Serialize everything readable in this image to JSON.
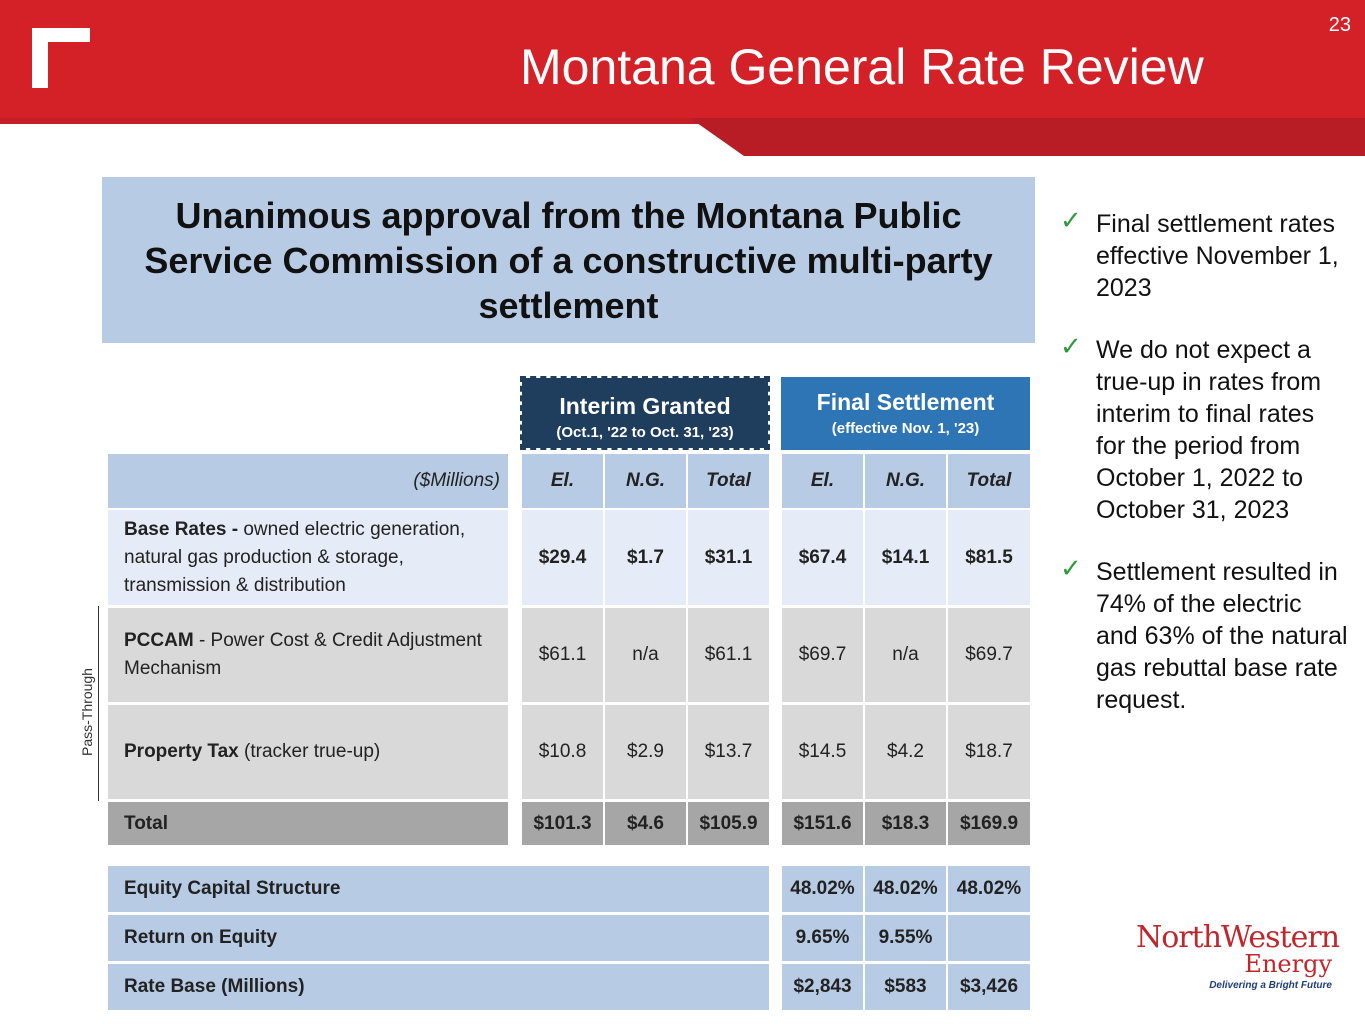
{
  "header": {
    "title": "Montana General Rate Review",
    "slide_number": "23",
    "accent_color": "#d42027"
  },
  "banner": {
    "text": "Unanimous approval from the Montana Public Service Commission of a constructive multi-party settlement"
  },
  "groups": {
    "interim": {
      "title": "Interim Granted",
      "subtitle": "(Oct.1, '22 to Oct. 31, '23)"
    },
    "final": {
      "title": "Final Settlement",
      "subtitle": "(effective Nov. 1, '23)"
    }
  },
  "table": {
    "unit_label": "($Millions)",
    "columns": [
      "El.",
      "N.G.",
      "Total",
      "El.",
      "N.G.",
      "Total"
    ],
    "rows": [
      {
        "label_bold": "Base Rates -",
        "label_rest": " owned electric generation, natural gas production & storage, transmission & distribution",
        "values": [
          "$29.4",
          "$1.7",
          "$31.1",
          "$67.4",
          "$14.1",
          "$81.5"
        ]
      },
      {
        "label_bold": "PCCAM",
        "label_rest": " - Power Cost & Credit Adjustment Mechanism",
        "values": [
          "$61.1",
          "n/a",
          "$61.1",
          "$69.7",
          "n/a",
          "$69.7"
        ]
      },
      {
        "label_bold": "Property Tax",
        "label_rest": " (tracker true-up)",
        "values": [
          "$10.8",
          "$2.9",
          "$13.7",
          "$14.5",
          "$4.2",
          "$18.7"
        ]
      },
      {
        "label_bold": "Total",
        "label_rest": "",
        "values": [
          "$101.3",
          "$4.6",
          "$105.9",
          "$151.6",
          "$18.3",
          "$169.9"
        ]
      }
    ],
    "pass_through_label": "Pass-Through",
    "equity_rows": [
      {
        "label": "Equity Capital Structure",
        "values": [
          "48.02%",
          "48.02%",
          "48.02%"
        ]
      },
      {
        "label": "Return on Equity",
        "values": [
          "9.65%",
          "9.55%",
          ""
        ]
      },
      {
        "label": "Rate Base (Millions)",
        "values": [
          "$2,843",
          "$583",
          "$3,426"
        ]
      }
    ]
  },
  "bullets": [
    "Final settlement rates effective November 1, 2023",
    "We do not expect a true-up in rates from interim to final rates for the period from October 1, 2022 to October 31, 2023",
    "Settlement resulted in 74% of the electric and 63% of the natural gas rebuttal base rate request."
  ],
  "check_icon": "check-icon",
  "logo": {
    "name": "NorthWestern",
    "sub": "Energy",
    "tagline": "Delivering a Bright Future"
  }
}
